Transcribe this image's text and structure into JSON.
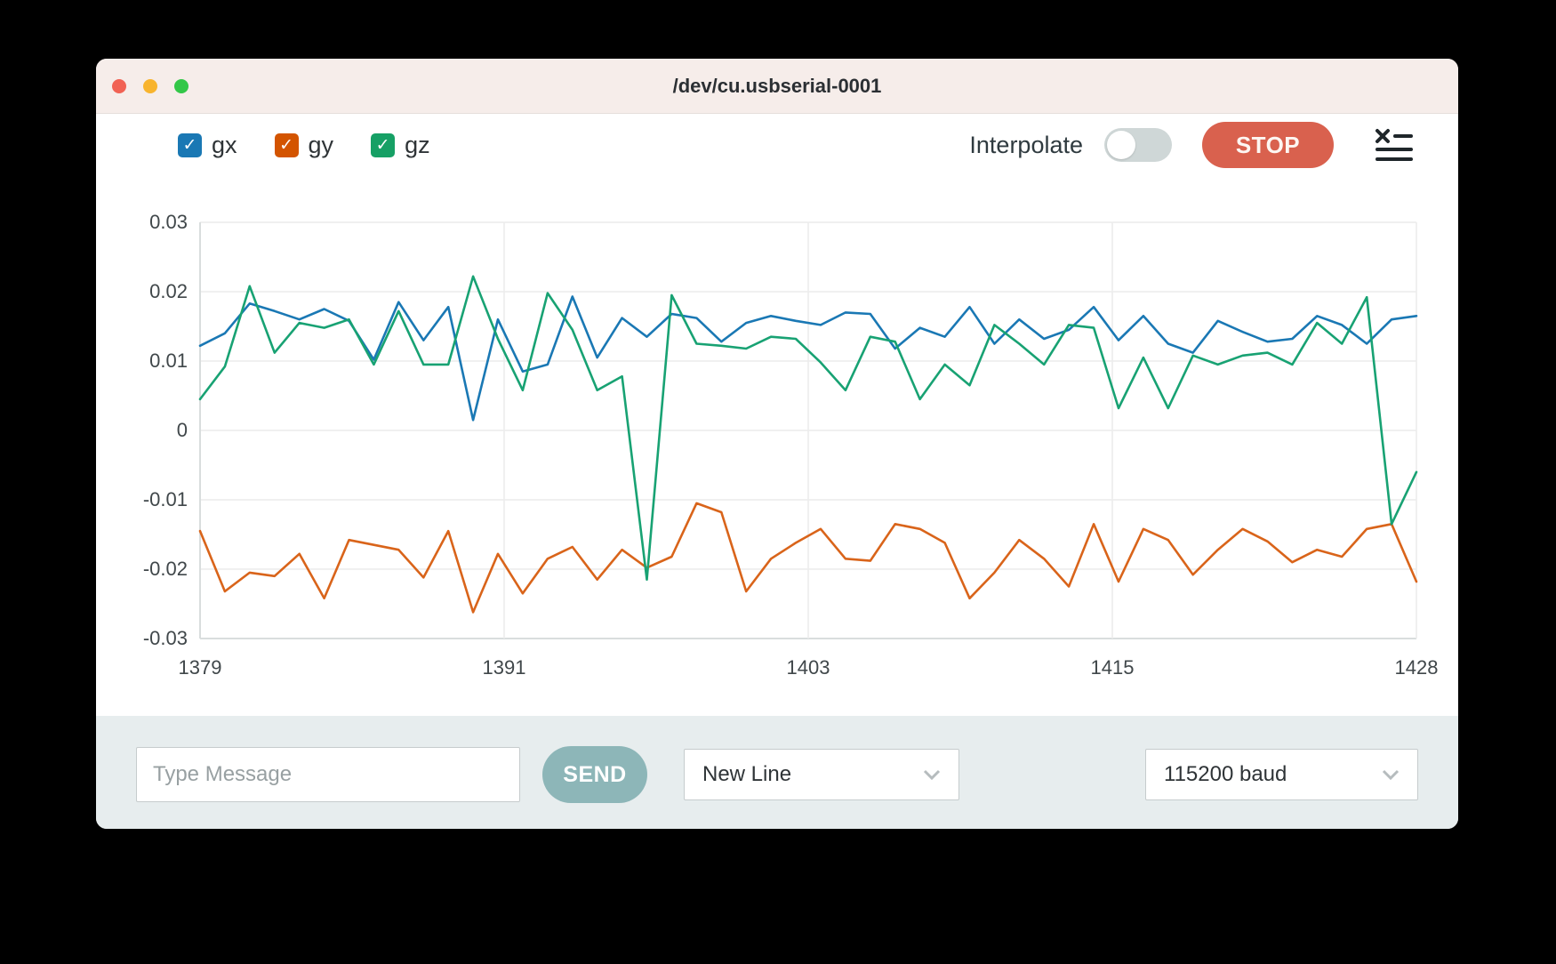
{
  "window": {
    "title": "/dev/cu.usbserial-0001"
  },
  "header": {
    "legend": [
      {
        "label": "gx",
        "color": "#1a78b4",
        "checked": true
      },
      {
        "label": "gy",
        "color": "#d35400",
        "checked": true
      },
      {
        "label": "gz",
        "color": "#16a065",
        "checked": true
      }
    ],
    "interpolate_label": "Interpolate",
    "interpolate_on": false,
    "stop_label": "STOP",
    "stop_color": "#d9614e",
    "clear_icon": "clear-console-icon"
  },
  "chart_data": {
    "type": "line",
    "title": "",
    "xlabel": "",
    "ylabel": "",
    "xlim": [
      1379,
      1428
    ],
    "ylim": [
      -0.03,
      0.03
    ],
    "grid": true,
    "legend_position": "top-left",
    "x_ticks": [
      "1379",
      "1391",
      "1403",
      "1415",
      "1428"
    ],
    "y_ticks": [
      "0.03",
      "0.02",
      "0.01",
      "0",
      "-0.01",
      "-0.02",
      "-0.03"
    ],
    "x": [
      1379,
      1380,
      1381,
      1382,
      1383,
      1384,
      1385,
      1386,
      1387,
      1388,
      1389,
      1390,
      1391,
      1392,
      1393,
      1394,
      1395,
      1396,
      1397,
      1398,
      1399,
      1400,
      1401,
      1402,
      1403,
      1404,
      1405,
      1406,
      1407,
      1408,
      1409,
      1410,
      1411,
      1412,
      1413,
      1414,
      1415,
      1416,
      1417,
      1418,
      1419,
      1420,
      1421,
      1422,
      1423,
      1424,
      1425,
      1426,
      1427,
      1428
    ],
    "series": [
      {
        "name": "gx",
        "color": "#1a78b4",
        "values": [
          0.0122,
          0.014,
          0.0183,
          0.0172,
          0.016,
          0.0175,
          0.0158,
          0.0102,
          0.0185,
          0.013,
          0.0178,
          0.0015,
          0.016,
          0.0085,
          0.0095,
          0.0193,
          0.0105,
          0.0162,
          0.0135,
          0.0168,
          0.0162,
          0.0128,
          0.0155,
          0.0165,
          0.0158,
          0.0152,
          0.017,
          0.0168,
          0.0118,
          0.0148,
          0.0135,
          0.0178,
          0.0125,
          0.016,
          0.0132,
          0.0145,
          0.0178,
          0.013,
          0.0165,
          0.0125,
          0.0112,
          0.0158,
          0.0142,
          0.0128,
          0.0132,
          0.0165,
          0.0152,
          0.0125,
          0.016,
          0.0165
        ]
      },
      {
        "name": "gy",
        "color": "#d9641a",
        "values": [
          -0.0145,
          -0.0232,
          -0.0205,
          -0.021,
          -0.0178,
          -0.0242,
          -0.0158,
          -0.0165,
          -0.0172,
          -0.0212,
          -0.0145,
          -0.0262,
          -0.0178,
          -0.0235,
          -0.0185,
          -0.0168,
          -0.0215,
          -0.0172,
          -0.0198,
          -0.0182,
          -0.0105,
          -0.0118,
          -0.0232,
          -0.0185,
          -0.0162,
          -0.0142,
          -0.0185,
          -0.0188,
          -0.0135,
          -0.0142,
          -0.0162,
          -0.0242,
          -0.0205,
          -0.0158,
          -0.0185,
          -0.0225,
          -0.0135,
          -0.0218,
          -0.0142,
          -0.0158,
          -0.0208,
          -0.0172,
          -0.0142,
          -0.016,
          -0.019,
          -0.0172,
          -0.0182,
          -0.0142,
          -0.0135,
          -0.0218
        ]
      },
      {
        "name": "gz",
        "color": "#18a273",
        "values": [
          0.0045,
          0.0092,
          0.0208,
          0.0112,
          0.0155,
          0.0148,
          0.016,
          0.0095,
          0.0172,
          0.0095,
          0.0095,
          0.0222,
          0.0132,
          0.0058,
          0.0198,
          0.0145,
          0.0058,
          0.0078,
          -0.0215,
          0.0195,
          0.0125,
          0.0122,
          0.0118,
          0.0135,
          0.0132,
          0.0098,
          0.0058,
          0.0135,
          0.0128,
          0.0045,
          0.0095,
          0.0065,
          0.0152,
          0.0125,
          0.0095,
          0.0152,
          0.0148,
          0.0032,
          0.0105,
          0.0032,
          0.0108,
          0.0095,
          0.0108,
          0.0112,
          0.0095,
          0.0155,
          0.0125,
          0.0192,
          -0.0135,
          -0.006
        ]
      }
    ]
  },
  "composer": {
    "message_placeholder": "Type Message",
    "send_label": "SEND",
    "line_ending": "New Line",
    "baud_rate": "115200 baud"
  }
}
